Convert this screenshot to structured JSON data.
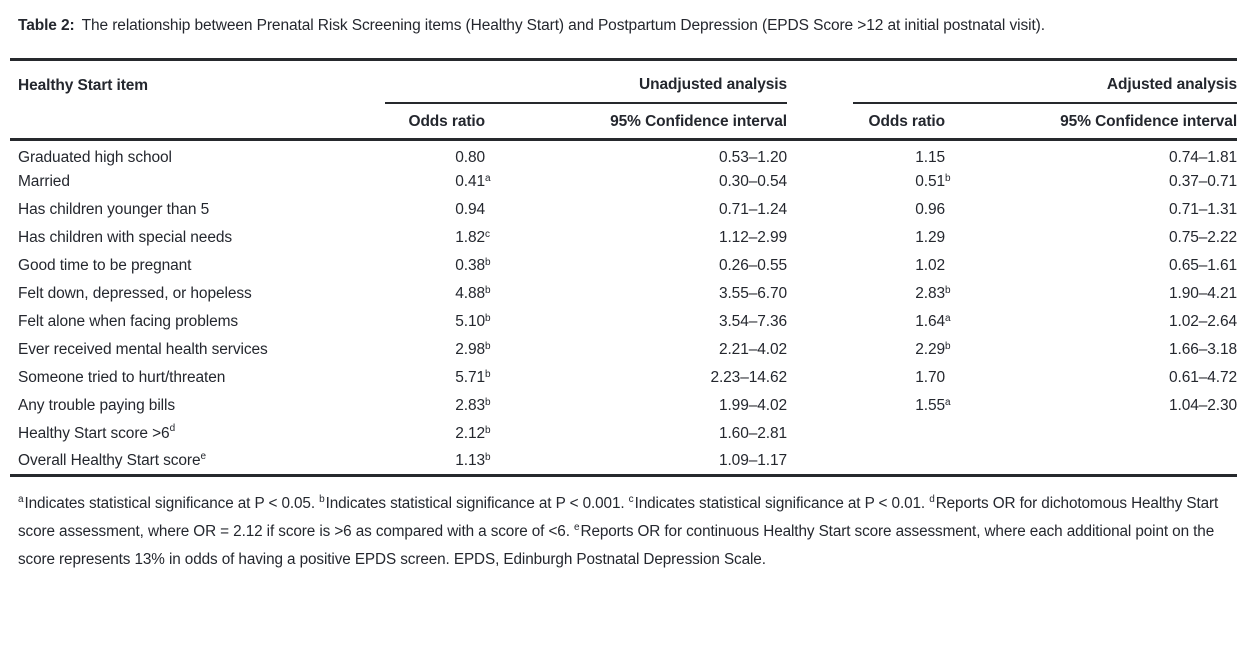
{
  "page": {
    "background": "#ffffff",
    "text_color": "#24272e",
    "rule_color": "#26292d"
  },
  "caption": {
    "label": "Table 2:",
    "text": "The relationship between Prenatal Risk Screening items (Healthy Start) and Postpartum Depression (EPDS Score >12 at initial postnatal visit)."
  },
  "table": {
    "item_header": "Healthy Start item",
    "groups": [
      {
        "label": "Unadjusted analysis",
        "sub": [
          "Odds ratio",
          "95% Confidence interval"
        ]
      },
      {
        "label": "Adjusted analysis",
        "sub": [
          "Odds ratio",
          "95% Confidence interval"
        ]
      }
    ],
    "rows": [
      {
        "item": "Graduated high school",
        "item_sup": "",
        "unadjusted": {
          "or": "0.80",
          "or_sup": "",
          "ci": "0.53–1.20"
        },
        "adjusted": {
          "or": "1.15",
          "or_sup": "",
          "ci": "0.74–1.81"
        }
      },
      {
        "item": "Married",
        "item_sup": "",
        "unadjusted": {
          "or": "0.41",
          "or_sup": "a",
          "ci": "0.30–0.54"
        },
        "adjusted": {
          "or": "0.51",
          "or_sup": "b",
          "ci": "0.37–0.71"
        }
      },
      {
        "item": "Has children younger than 5",
        "item_sup": "",
        "unadjusted": {
          "or": "0.94",
          "or_sup": "",
          "ci": "0.71–1.24"
        },
        "adjusted": {
          "or": "0.96",
          "or_sup": "",
          "ci": "0.71–1.31"
        }
      },
      {
        "item": "Has children with special needs",
        "item_sup": "",
        "unadjusted": {
          "or": "1.82",
          "or_sup": "c",
          "ci": "1.12–2.99"
        },
        "adjusted": {
          "or": "1.29",
          "or_sup": "",
          "ci": "0.75–2.22"
        }
      },
      {
        "item": "Good time to be pregnant",
        "item_sup": "",
        "unadjusted": {
          "or": "0.38",
          "or_sup": "b",
          "ci": "0.26–0.55"
        },
        "adjusted": {
          "or": "1.02",
          "or_sup": "",
          "ci": "0.65–1.61"
        }
      },
      {
        "item": "Felt down, depressed, or hopeless",
        "item_sup": "",
        "unadjusted": {
          "or": "4.88",
          "or_sup": "b",
          "ci": "3.55–6.70"
        },
        "adjusted": {
          "or": "2.83",
          "or_sup": "b",
          "ci": "1.90–4.21"
        }
      },
      {
        "item": "Felt alone when facing problems",
        "item_sup": "",
        "unadjusted": {
          "or": "5.10",
          "or_sup": "b",
          "ci": "3.54–7.36"
        },
        "adjusted": {
          "or": "1.64",
          "or_sup": "a",
          "ci": "1.02–2.64"
        }
      },
      {
        "item": "Ever received mental health services",
        "item_sup": "",
        "unadjusted": {
          "or": "2.98",
          "or_sup": "b",
          "ci": "2.21–4.02"
        },
        "adjusted": {
          "or": "2.29",
          "or_sup": "b",
          "ci": "1.66–3.18"
        }
      },
      {
        "item": "Someone tried to hurt/threaten",
        "item_sup": "",
        "unadjusted": {
          "or": "5.71",
          "or_sup": "b",
          "ci": "2.23–14.62"
        },
        "adjusted": {
          "or": "1.70",
          "or_sup": "",
          "ci": "0.61–4.72"
        }
      },
      {
        "item": "Any trouble paying bills",
        "item_sup": "",
        "unadjusted": {
          "or": "2.83",
          "or_sup": "b",
          "ci": "1.99–4.02"
        },
        "adjusted": {
          "or": "1.55",
          "or_sup": "a",
          "ci": "1.04–2.30"
        }
      },
      {
        "item": "Healthy Start score >6",
        "item_sup": "d",
        "unadjusted": {
          "or": "2.12",
          "or_sup": "b",
          "ci": "1.60–2.81"
        },
        "adjusted": {
          "or": "",
          "or_sup": "",
          "ci": ""
        }
      },
      {
        "item": "Overall Healthy Start score",
        "item_sup": "e",
        "unadjusted": {
          "or": "1.13",
          "or_sup": "b",
          "ci": "1.09–1.17"
        },
        "adjusted": {
          "or": "",
          "or_sup": "",
          "ci": ""
        }
      }
    ]
  },
  "footnotes": {
    "segments": [
      {
        "sup": "a",
        "text": "Indicates statistical significance at P < 0.05. "
      },
      {
        "sup": "b",
        "text": "Indicates statistical significance at P < 0.001. "
      },
      {
        "sup": "c",
        "text": "Indicates statistical significance at P < 0.01. "
      },
      {
        "sup": "d",
        "text": "Reports OR for dichotomous Healthy Start score assessment, where OR = 2.12 if score is >6 as compared with a score of <6. "
      },
      {
        "sup": "e",
        "text": "Reports OR for continuous Healthy Start score assessment, where each additional point on the score represents 13% in odds of having a positive EPDS screen. EPDS, Edinburgh Postnatal Depression Scale."
      }
    ]
  }
}
